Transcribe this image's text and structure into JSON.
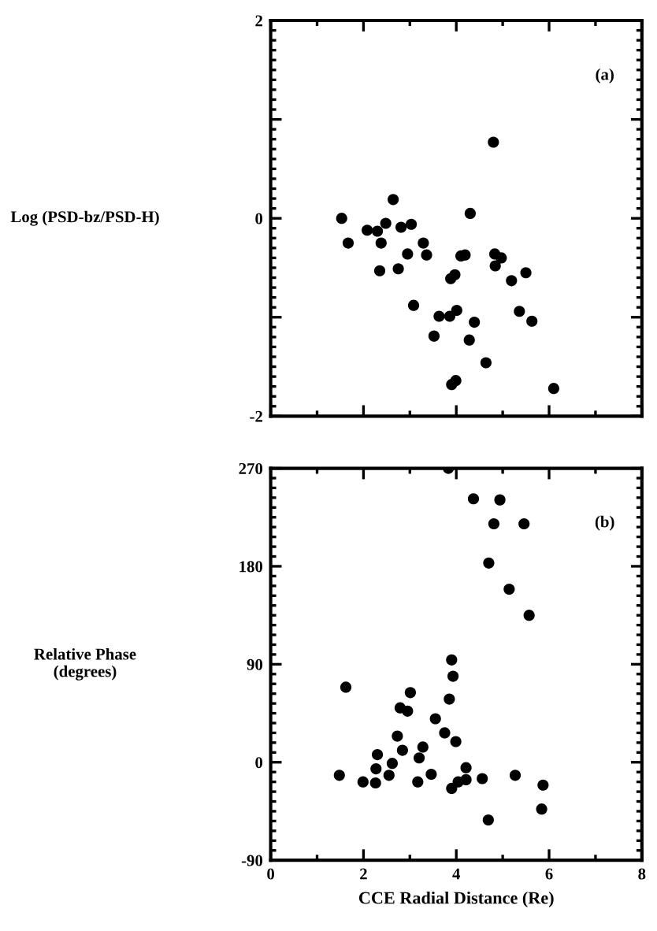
{
  "chart_data": [
    {
      "type": "scatter",
      "ylabel": "Log (PSD-bz/PSD-H)",
      "annotations": [
        "(a)"
      ],
      "xlim": [
        0,
        8
      ],
      "xticks": [
        0,
        2,
        4,
        6,
        8
      ],
      "ylim": [
        -2,
        2
      ],
      "yticks": [
        -2,
        {
          "value": -1,
          "label": null
        },
        0,
        {
          "value": 1,
          "label": null
        },
        2
      ],
      "tick_labels": "y",
      "marker": "circle",
      "grid": false,
      "legend": false,
      "series": [
        {
          "color": "#000000",
          "x": [
            1.53,
            1.67,
            2.08,
            2.3,
            2.38,
            2.48,
            2.35,
            2.64,
            2.75,
            2.81,
            3.03,
            2.95,
            3.08,
            3.29,
            3.36,
            3.52,
            3.63,
            3.88,
            3.97,
            3.86,
            4.01,
            3.9,
            3.99,
            4.1,
            4.19,
            4.3,
            4.39,
            4.28,
            4.64,
            4.8,
            4.83,
            4.97,
            4.84,
            5.19,
            5.5,
            5.36,
            5.63,
            6.1
          ],
          "values": [
            0,
            -0.25,
            -0.12,
            -0.13,
            -0.25,
            -0.05,
            -0.53,
            0.19,
            -0.51,
            -0.09,
            -0.06,
            -0.36,
            -0.88,
            -0.25,
            -0.37,
            -1.19,
            -0.99,
            -0.61,
            -0.57,
            -0.99,
            -0.93,
            -1.68,
            -1.64,
            -0.38,
            -0.37,
            0.05,
            -1.05,
            -1.23,
            -1.46,
            0.77,
            -0.36,
            -0.4,
            -0.48,
            -0.63,
            -0.55,
            -0.94,
            -1.04,
            -1.72
          ]
        }
      ]
    },
    {
      "type": "scatter",
      "xlabel": "CCE Radial Distance (Re)",
      "ylabel": "Relative Phase\n(degrees)",
      "annotations": [
        "(b)"
      ],
      "xlim": [
        0,
        8
      ],
      "xticks": [
        0,
        2,
        4,
        6,
        8
      ],
      "ylim": [
        -90,
        270
      ],
      "yticks": [
        -90,
        0,
        90,
        180,
        270
      ],
      "marker": "circle",
      "grid": false,
      "legend": false,
      "series": [
        {
          "color": "#000000",
          "x": [
            3.83,
            4.37,
            4.94,
            4.81,
            5.46,
            4.7,
            5.14,
            5.57,
            3.9,
            3.93,
            3.85,
            1.62,
            3.01,
            2.79,
            2.95,
            3.55,
            3.75,
            3.99,
            2.73,
            3.28,
            3.2,
            2.84,
            2.3,
            2.27,
            2.62,
            2.55,
            1.48,
            1.99,
            2.26,
            3.17,
            3.46,
            3.9,
            4.04,
            4.21,
            4.21,
            4.56,
            5.27,
            5.87,
            5.84,
            4.69
          ],
          "values": [
            270,
            242,
            241,
            219,
            219,
            183,
            159,
            135,
            94,
            79,
            58,
            69,
            64,
            50,
            47,
            40,
            27,
            19,
            24,
            14,
            4,
            11,
            7,
            -6,
            -1,
            -12,
            -12,
            -18,
            -19,
            -18,
            -11,
            -24,
            -18,
            -5,
            -16,
            -15,
            -12,
            -21,
            -43,
            -53
          ]
        }
      ]
    }
  ]
}
